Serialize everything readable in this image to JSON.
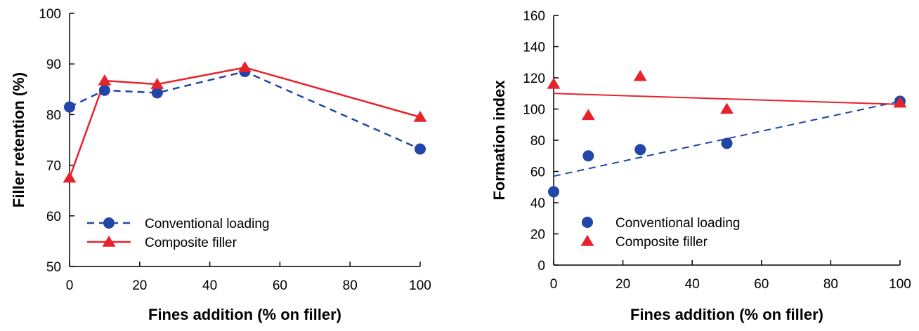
{
  "colors": {
    "conventional": "#2146a8",
    "composite": "#e8222b",
    "axis": "#000000"
  },
  "chart_data": [
    {
      "type": "line",
      "xlabel": "Fines addition (% on filler)",
      "ylabel": "Filler retention (%)",
      "xlim": [
        0,
        100
      ],
      "ylim": [
        50,
        100
      ],
      "xticks": [
        0,
        20,
        40,
        60,
        80,
        100
      ],
      "yticks": [
        50,
        60,
        70,
        80,
        90,
        100
      ],
      "grid": false,
      "legend_position": "bottom-left",
      "series": [
        {
          "name": "Conventional loading",
          "marker": "circle",
          "line": "dashed",
          "x": [
            0,
            10,
            25,
            50,
            100
          ],
          "y": [
            81.5,
            84.8,
            84.3,
            88.5,
            73.2
          ]
        },
        {
          "name": "Composite filler",
          "marker": "triangle",
          "line": "solid",
          "x": [
            0,
            10,
            25,
            50,
            100
          ],
          "y": [
            67.5,
            86.7,
            86.0,
            89.3,
            79.5
          ]
        }
      ]
    },
    {
      "type": "scatter",
      "xlabel": "Fines addition (% on filler)",
      "ylabel": "Formation index",
      "xlim": [
        0,
        100
      ],
      "ylim": [
        0,
        160
      ],
      "xticks": [
        0,
        20,
        40,
        60,
        80,
        100
      ],
      "yticks": [
        0,
        20,
        40,
        60,
        80,
        100,
        120,
        140,
        160
      ],
      "grid": false,
      "legend_position": "bottom-left",
      "series": [
        {
          "name": "Conventional loading",
          "marker": "circle",
          "x": [
            0,
            10,
            25,
            50,
            100
          ],
          "y": [
            47,
            70,
            74,
            78,
            105
          ],
          "trendline": {
            "line": "dashed",
            "x": [
              0,
              100
            ],
            "y": [
              57,
              105
            ]
          }
        },
        {
          "name": "Composite filler",
          "marker": "triangle",
          "x": [
            0,
            10,
            25,
            50,
            100
          ],
          "y": [
            116,
            96,
            121,
            100,
            104
          ],
          "trendline": {
            "line": "solid",
            "x": [
              0,
              100
            ],
            "y": [
              110,
              103
            ]
          }
        }
      ]
    }
  ]
}
